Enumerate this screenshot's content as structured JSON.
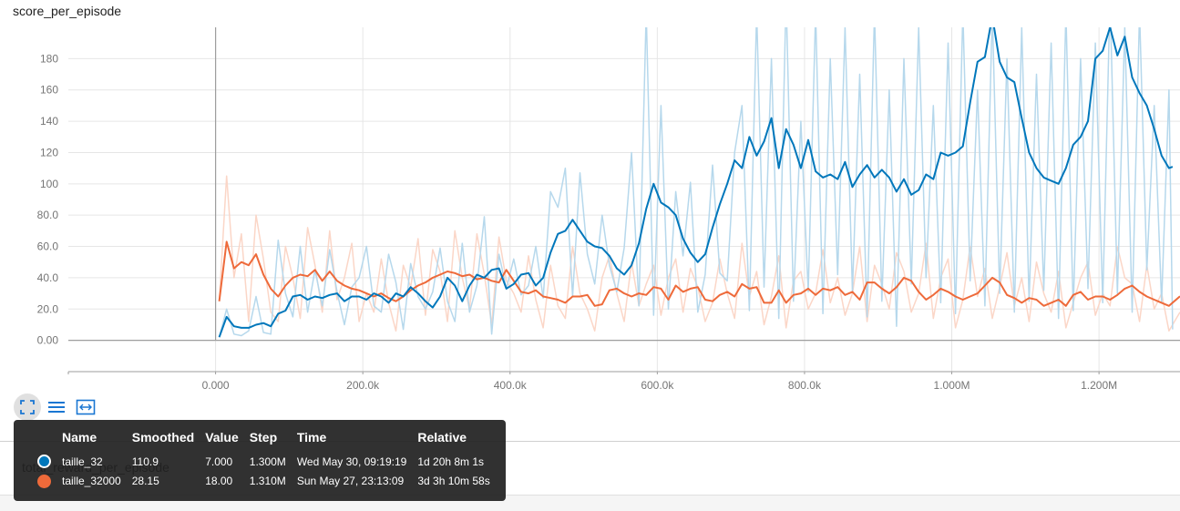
{
  "card_title": "score_per_episode",
  "second_card_title": "total_reward_per_episode",
  "colors": {
    "series1": "#0077bb",
    "series1_raw": "#b6d8ec",
    "series2": "#ee6a3a",
    "series2_raw": "#fbd6c7",
    "grid": "#e6e6e6",
    "axis": "#9e9e9e"
  },
  "toolbar": [
    {
      "name": "expand-icon",
      "active": true
    },
    {
      "name": "list-icon",
      "active": false
    },
    {
      "name": "fit-domain-icon",
      "active": false
    }
  ],
  "tooltip": {
    "headers": [
      "Name",
      "Smoothed",
      "Value",
      "Step",
      "Time",
      "Relative"
    ],
    "rows": [
      {
        "color": "#0077bb",
        "name": "taille_32",
        "smoothed": "110.9",
        "value": "7.000",
        "step": "1.300M",
        "time": "Wed May 30, 09:19:19",
        "relative": "1d 20h 8m 1s"
      },
      {
        "color": "#ee6a3a",
        "name": "taille_32000",
        "smoothed": "28.15",
        "value": "18.00",
        "step": "1.310M",
        "time": "Sun May 27, 23:13:09",
        "relative": "3d 3h 10m 58s"
      }
    ]
  },
  "chart_data": {
    "type": "line",
    "title": "score_per_episode",
    "xlabel": "",
    "ylabel": "",
    "xlim": [
      -200000,
      1310000
    ],
    "ylim": [
      -20,
      200
    ],
    "x_ticks": [
      0,
      200000,
      400000,
      600000,
      800000,
      1000000,
      1200000
    ],
    "x_tick_labels": [
      "0.000",
      "200.0k",
      "400.0k",
      "600.0k",
      "800.0k",
      "1.000M",
      "1.200M"
    ],
    "y_ticks": [
      0,
      20,
      40,
      60,
      80,
      100,
      120,
      140,
      160,
      180
    ],
    "y_tick_labels": [
      "0.00",
      "20.0",
      "40.0",
      "60.0",
      "80.0",
      "100",
      "120",
      "140",
      "160",
      "180"
    ],
    "grid": true,
    "series": [
      {
        "name": "taille_32",
        "x": [
          5000,
          15000,
          25000,
          35000,
          45000,
          55000,
          65000,
          75000,
          85000,
          95000,
          105000,
          115000,
          125000,
          135000,
          145000,
          155000,
          165000,
          175000,
          185000,
          195000,
          205000,
          215000,
          225000,
          235000,
          245000,
          255000,
          265000,
          275000,
          285000,
          295000,
          305000,
          315000,
          325000,
          335000,
          345000,
          355000,
          365000,
          375000,
          385000,
          395000,
          405000,
          415000,
          425000,
          435000,
          445000,
          455000,
          465000,
          475000,
          485000,
          495000,
          505000,
          515000,
          525000,
          535000,
          545000,
          555000,
          565000,
          575000,
          585000,
          595000,
          605000,
          615000,
          625000,
          635000,
          645000,
          655000,
          665000,
          675000,
          685000,
          695000,
          705000,
          715000,
          725000,
          735000,
          745000,
          755000,
          765000,
          775000,
          785000,
          795000,
          805000,
          815000,
          825000,
          835000,
          845000,
          855000,
          865000,
          875000,
          885000,
          895000,
          905000,
          915000,
          925000,
          935000,
          945000,
          955000,
          965000,
          975000,
          985000,
          995000,
          1005000,
          1015000,
          1025000,
          1035000,
          1045000,
          1055000,
          1065000,
          1075000,
          1085000,
          1095000,
          1105000,
          1115000,
          1125000,
          1135000,
          1145000,
          1155000,
          1165000,
          1175000,
          1185000,
          1195000,
          1205000,
          1215000,
          1225000,
          1235000,
          1245000,
          1255000,
          1265000,
          1275000,
          1285000,
          1295000,
          1300000
        ],
        "smoothed": [
          2,
          15,
          9,
          8,
          8,
          10,
          11,
          9,
          17,
          19,
          28,
          29,
          26,
          28,
          27,
          29,
          30,
          25,
          28,
          28,
          26,
          30,
          28,
          24,
          30,
          28,
          34,
          30,
          25,
          21,
          28,
          40,
          35,
          25,
          35,
          42,
          40,
          45,
          46,
          33,
          36,
          42,
          43,
          35,
          40,
          56,
          68,
          70,
          77,
          70,
          63,
          60,
          59,
          54,
          46,
          42,
          48,
          62,
          84,
          100,
          88,
          85,
          80,
          65,
          56,
          50,
          55,
          72,
          87,
          100,
          115,
          110,
          130,
          118,
          127,
          142,
          110,
          135,
          125,
          110,
          128,
          108,
          104,
          106,
          103,
          114,
          98,
          106,
          112,
          104,
          109,
          104,
          95,
          103,
          93,
          96,
          106,
          103,
          120,
          118,
          120,
          124,
          152,
          178,
          181,
          207,
          178,
          168,
          165,
          142,
          120,
          110,
          104,
          102,
          100,
          110,
          125,
          130,
          140,
          180,
          185,
          200,
          182,
          194,
          168,
          158,
          150,
          135,
          118,
          110,
          110.9
        ],
        "raw": [
          2,
          20,
          4,
          3,
          6,
          28,
          5,
          4,
          64,
          30,
          15,
          60,
          18,
          45,
          22,
          58,
          31,
          10,
          34,
          40,
          60,
          22,
          18,
          55,
          37,
          7,
          49,
          28,
          20,
          31,
          59,
          25,
          12,
          62,
          18,
          35,
          79,
          4,
          55,
          33,
          52,
          29,
          35,
          60,
          27,
          95,
          85,
          110,
          28,
          107,
          55,
          36,
          80,
          48,
          31,
          59,
          120,
          22,
          210,
          16,
          150,
          20,
          95,
          54,
          101,
          18,
          42,
          112,
          43,
          38,
          120,
          150,
          19,
          210,
          34,
          180,
          14,
          220,
          25,
          140,
          31,
          210,
          17,
          180,
          42,
          200,
          31,
          170,
          15,
          210,
          25,
          160,
          9,
          180,
          36,
          200,
          40,
          150,
          24,
          190,
          17,
          210,
          38,
          160,
          22,
          210,
          30,
          180,
          18,
          200,
          25,
          170,
          32,
          190,
          14,
          210,
          19,
          180,
          33,
          190,
          24,
          220,
          30,
          200,
          18,
          210,
          45,
          150,
          24,
          160,
          7
        ]
      },
      {
        "name": "taille_32000",
        "x": [
          5000,
          15000,
          25000,
          35000,
          45000,
          55000,
          65000,
          75000,
          85000,
          95000,
          105000,
          115000,
          125000,
          135000,
          145000,
          155000,
          165000,
          175000,
          185000,
          195000,
          205000,
          215000,
          225000,
          235000,
          245000,
          255000,
          265000,
          275000,
          285000,
          295000,
          305000,
          315000,
          325000,
          335000,
          345000,
          355000,
          365000,
          375000,
          385000,
          395000,
          405000,
          415000,
          425000,
          435000,
          445000,
          455000,
          465000,
          475000,
          485000,
          495000,
          505000,
          515000,
          525000,
          535000,
          545000,
          555000,
          565000,
          575000,
          585000,
          595000,
          605000,
          615000,
          625000,
          635000,
          645000,
          655000,
          665000,
          675000,
          685000,
          695000,
          705000,
          715000,
          725000,
          735000,
          745000,
          755000,
          765000,
          775000,
          785000,
          795000,
          805000,
          815000,
          825000,
          835000,
          845000,
          855000,
          865000,
          875000,
          885000,
          895000,
          905000,
          915000,
          925000,
          935000,
          945000,
          955000,
          965000,
          975000,
          985000,
          995000,
          1005000,
          1015000,
          1025000,
          1035000,
          1045000,
          1055000,
          1065000,
          1075000,
          1085000,
          1095000,
          1105000,
          1115000,
          1125000,
          1135000,
          1145000,
          1155000,
          1165000,
          1175000,
          1185000,
          1195000,
          1205000,
          1215000,
          1225000,
          1235000,
          1245000,
          1255000,
          1265000,
          1275000,
          1285000,
          1295000,
          1310000
        ],
        "smoothed": [
          25,
          63,
          46,
          50,
          48,
          55,
          42,
          33,
          28,
          35,
          40,
          42,
          41,
          45,
          38,
          44,
          38,
          35,
          33,
          32,
          30,
          28,
          30,
          27,
          25,
          28,
          32,
          35,
          37,
          40,
          42,
          44,
          43,
          41,
          42,
          39,
          40,
          38,
          37,
          45,
          38,
          31,
          30,
          32,
          28,
          27,
          26,
          24,
          28,
          28,
          29,
          22,
          23,
          32,
          33,
          30,
          28,
          30,
          29,
          34,
          33,
          26,
          35,
          31,
          33,
          34,
          26,
          25,
          29,
          31,
          28,
          36,
          33,
          34,
          24,
          24,
          32,
          24,
          29,
          30,
          33,
          29,
          33,
          32,
          34,
          29,
          31,
          26,
          37,
          37,
          33,
          30,
          34,
          40,
          38,
          31,
          26,
          29,
          33,
          31,
          28,
          26,
          28,
          30,
          35,
          40,
          37,
          29,
          27,
          24,
          27,
          26,
          22,
          24,
          26,
          22,
          29,
          31,
          26,
          28,
          28,
          26,
          29,
          33,
          35,
          31,
          28,
          26,
          24,
          22,
          28.15
        ],
        "raw": [
          25,
          105,
          40,
          68,
          12,
          80,
          52,
          18,
          12,
          60,
          40,
          14,
          72,
          48,
          18,
          70,
          26,
          40,
          62,
          12,
          30,
          18,
          52,
          24,
          6,
          48,
          34,
          65,
          16,
          58,
          44,
          12,
          70,
          40,
          20,
          68,
          42,
          10,
          66,
          38,
          30,
          18,
          54,
          26,
          8,
          48,
          22,
          14,
          60,
          30,
          20,
          6,
          40,
          54,
          30,
          12,
          50,
          22,
          36,
          48,
          16,
          40,
          52,
          18,
          46,
          34,
          12,
          24,
          52,
          30,
          14,
          62,
          28,
          44,
          10,
          28,
          54,
          8,
          38,
          44,
          20,
          30,
          58,
          24,
          40,
          16,
          30,
          60,
          12,
          48,
          36,
          20,
          56,
          44,
          18,
          30,
          62,
          14,
          40,
          52,
          8,
          26,
          60,
          28,
          46,
          14,
          34,
          56,
          22,
          40,
          12,
          50,
          30,
          18,
          44,
          8,
          24,
          40,
          50,
          16,
          30,
          22,
          60,
          40,
          36,
          12,
          48,
          20,
          30,
          6,
          18
        ]
      }
    ]
  }
}
